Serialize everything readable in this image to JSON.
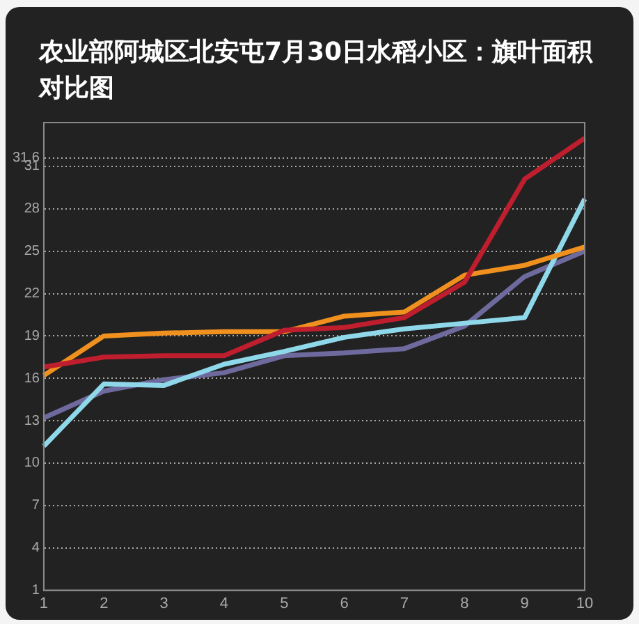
{
  "chart_data": {
    "type": "line",
    "title": "农业部阿城区北安屯7月30日水稻小区：旗叶面积对比图",
    "categories": [
      "1",
      "2",
      "3",
      "4",
      "5",
      "6",
      "7",
      "8",
      "9",
      "10"
    ],
    "series": [
      {
        "color": "#be1e2d",
        "values": [
          16.8,
          17.5,
          17.6,
          17.6,
          19.4,
          19.6,
          20.3,
          22.8,
          30.1,
          33.0
        ]
      },
      {
        "color": "#f0901e",
        "values": [
          16.2,
          19.0,
          19.2,
          19.3,
          19.3,
          20.4,
          20.7,
          23.3,
          24.0,
          25.3
        ]
      },
      {
        "color": "#8fd8ea",
        "values": [
          11.2,
          15.6,
          15.5,
          17.0,
          17.9,
          18.9,
          19.5,
          19.9,
          20.3,
          28.7
        ]
      },
      {
        "color": "#6e6a9e",
        "values": [
          13.2,
          15.1,
          15.9,
          16.4,
          17.6,
          17.8,
          18.1,
          19.7,
          23.2,
          25.0
        ]
      }
    ],
    "ylim": [
      1,
      34.1
    ],
    "yticks": [
      1,
      4,
      7,
      10,
      13,
      16,
      19,
      22,
      25,
      28,
      31,
      31.6
    ],
    "grid": "y",
    "legend": false,
    "marker": "none",
    "line_style": "solid"
  }
}
